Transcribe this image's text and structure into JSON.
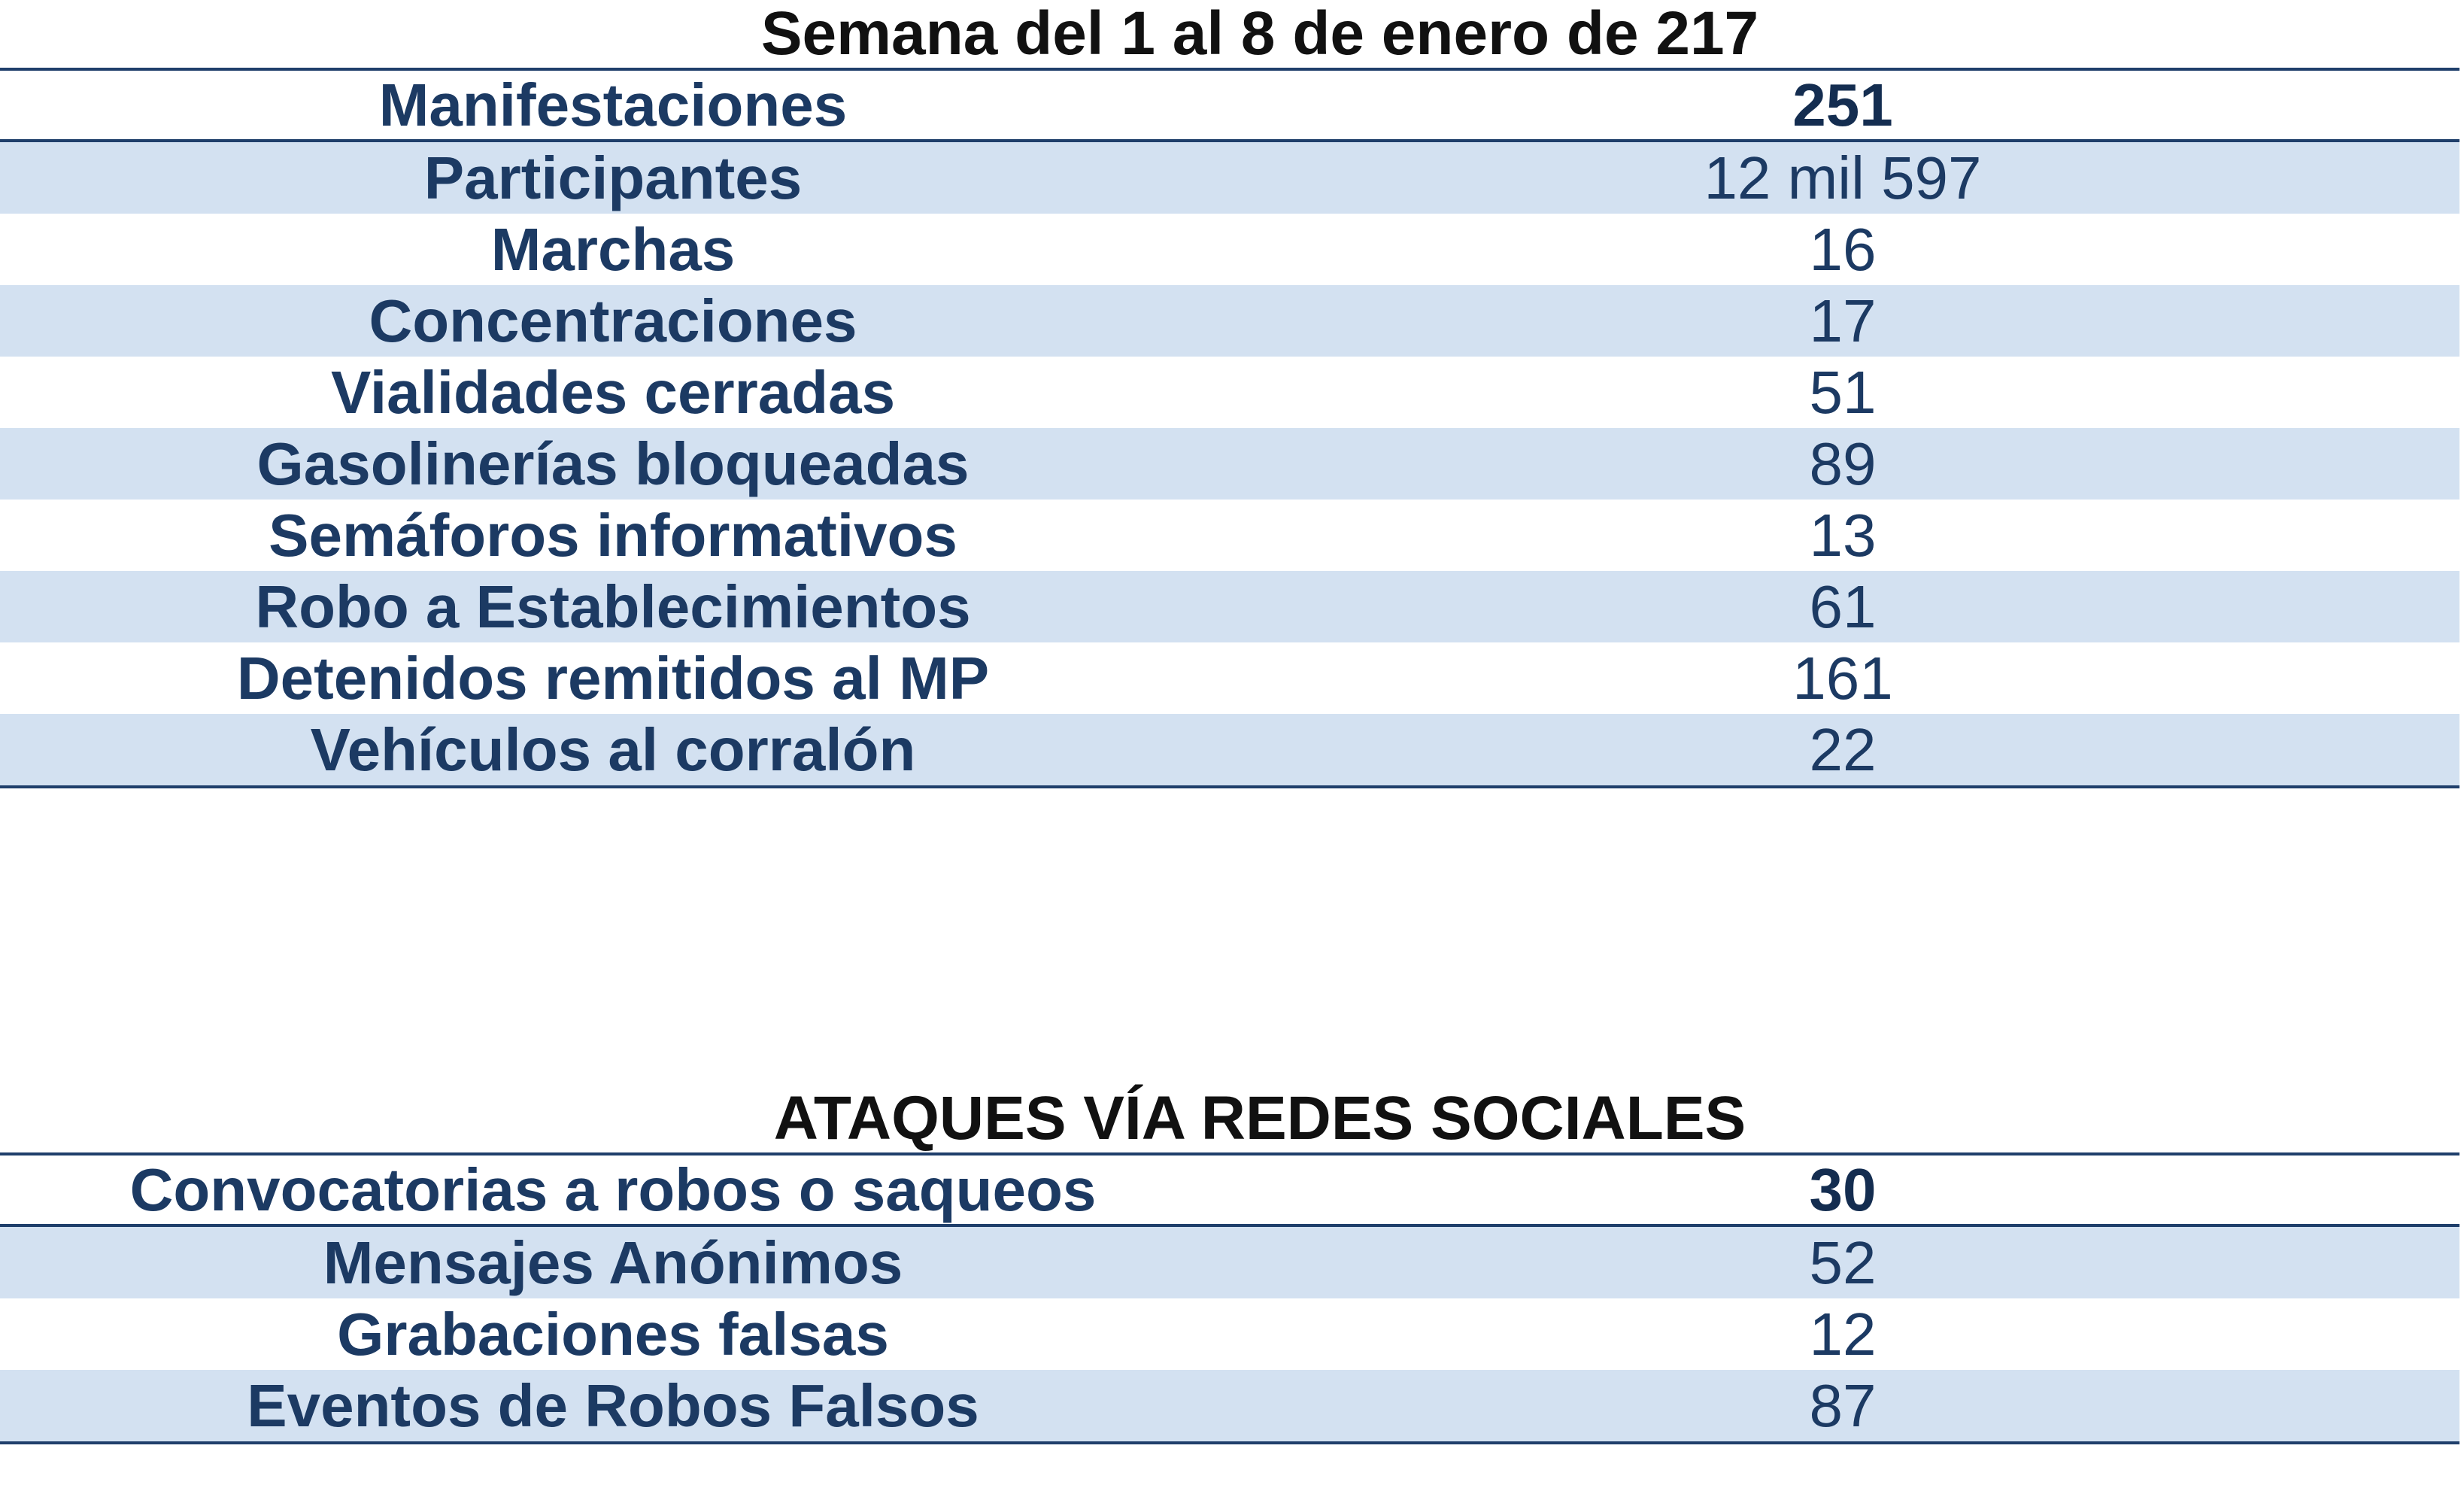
{
  "week_table": {
    "title": "Semana del 1 al 8 de enero de 217",
    "rows": [
      {
        "label": "Manifestaciones",
        "value": "251"
      },
      {
        "label": "Participantes",
        "value": "12 mil 597"
      },
      {
        "label": "Marchas",
        "value": "16"
      },
      {
        "label": "Concentraciones",
        "value": "17"
      },
      {
        "label": "Vialidades cerradas",
        "value": "51"
      },
      {
        "label": "Gasolinerías bloqueadas",
        "value": "89"
      },
      {
        "label": "Semáforos informativos",
        "value": "13"
      },
      {
        "label": "Robo a Establecimientos",
        "value": "61"
      },
      {
        "label": "Detenidos remitidos al MP",
        "value": "161"
      },
      {
        "label": "Vehículos al corralón",
        "value": "22"
      }
    ]
  },
  "social_table": {
    "title": "ATAQUES VÍA REDES SOCIALES",
    "rows": [
      {
        "label": "Convocatorias a robos o saqueos",
        "value": "30"
      },
      {
        "label": "Mensajes Anónimos",
        "value": "52"
      },
      {
        "label": "Grabaciones falsas",
        "value": "12"
      },
      {
        "label": "Eventos de Robos Falsos",
        "value": "87"
      }
    ]
  },
  "colors": {
    "text_blue": "#1c3a63",
    "rule_blue": "#1f3f6b",
    "stripe": "#d3e1f1"
  }
}
